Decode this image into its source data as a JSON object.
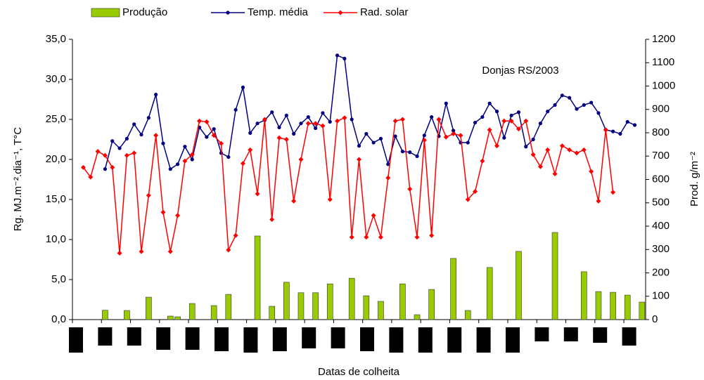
{
  "chart_data": {
    "type": "combo",
    "annotation": "Donjas RS/2003",
    "x_label": "Datas de colheita",
    "y_label": "Rg. MJ.m⁻².dia⁻¹, T°C",
    "y2_label": "Prod. g/m⁻²",
    "categories": [
      null,
      null,
      null,
      null,
      null,
      null,
      null,
      null,
      null,
      null,
      null,
      null,
      null,
      null,
      null,
      null,
      null,
      null,
      null,
      null,
      null,
      null,
      null,
      null,
      null,
      null,
      null,
      null,
      null,
      null,
      null,
      null,
      null,
      null,
      null,
      null,
      null,
      null,
      null,
      null,
      null,
      null,
      null,
      null,
      null,
      null,
      null,
      null,
      null,
      null,
      null,
      null,
      null,
      null,
      null,
      null,
      null,
      null,
      null,
      null,
      null,
      null,
      null,
      null,
      null,
      null,
      null,
      null,
      null,
      null,
      null,
      null,
      null,
      null,
      null,
      null,
      null,
      null,
      null
    ],
    "ylim": [
      0,
      35
    ],
    "yticks": [
      {
        "value": 0,
        "label": "0,0"
      },
      {
        "value": 5,
        "label": "5,0"
      },
      {
        "value": 10,
        "label": "10,0"
      },
      {
        "value": 15,
        "label": "15,0"
      },
      {
        "value": 20,
        "label": "20,0"
      },
      {
        "value": 25,
        "label": "25,0"
      },
      {
        "value": 30,
        "label": "30,0"
      },
      {
        "value": 35,
        "label": "35,0"
      }
    ],
    "y2lim": [
      0,
      1200
    ],
    "y2ticks": [
      0,
      100,
      200,
      300,
      400,
      500,
      600,
      700,
      800,
      900,
      1000,
      1100,
      1200
    ],
    "grid": false,
    "legend": "top",
    "series": [
      {
        "name": "Produção",
        "type": "bar",
        "axis": "y2",
        "color": "#99cc00",
        "values": [
          null,
          null,
          null,
          null,
          40,
          null,
          null,
          39,
          null,
          null,
          96,
          null,
          null,
          15,
          12,
          null,
          69,
          null,
          null,
          60,
          null,
          108,
          null,
          null,
          null,
          358,
          null,
          57,
          null,
          160,
          null,
          115,
          null,
          115,
          null,
          153,
          null,
          null,
          177,
          null,
          102,
          null,
          78,
          null,
          null,
          153,
          null,
          21,
          null,
          129,
          null,
          null,
          262,
          null,
          39,
          null,
          null,
          223,
          null,
          null,
          null,
          292,
          null,
          null,
          null,
          null,
          373,
          null,
          null,
          null,
          205,
          null,
          120,
          null,
          117,
          null,
          105,
          null,
          75
        ]
      },
      {
        "name": "Temp. média",
        "type": "line",
        "marker": "circle",
        "color": "#000080",
        "values": [
          null,
          null,
          null,
          null,
          18.8,
          22.3,
          21.4,
          22.6,
          24.4,
          23.1,
          25.2,
          28.1,
          22.0,
          18.8,
          19.4,
          21.6,
          20.0,
          24.0,
          22.8,
          23.8,
          20.8,
          20.3,
          26.2,
          29.0,
          23.3,
          24.5,
          24.9,
          25.9,
          24.0,
          25.5,
          23.2,
          24.5,
          25.3,
          23.9,
          25.8,
          24.7,
          33.0,
          32.6,
          25.0,
          21.7,
          23.2,
          22.1,
          22.6,
          19.4,
          22.9,
          21.0,
          20.9,
          20.4,
          23.0,
          25.3,
          22.9,
          27.0,
          23.6,
          22.1,
          22.1,
          24.6,
          25.3,
          27.0,
          26.0,
          22.7,
          25.5,
          25.9,
          21.6,
          22.5,
          24.5,
          26.0,
          26.8,
          28.0,
          27.7,
          26.3,
          26.8,
          27.1,
          25.8,
          23.7,
          23.5,
          23.2,
          24.7,
          24.3,
          null
        ]
      },
      {
        "name": "Rad. solar",
        "type": "line",
        "marker": "diamond",
        "color": "#ff0000",
        "values": [
          null,
          19.0,
          17.8,
          21.0,
          20.5,
          19.0,
          8.3,
          20.5,
          20.8,
          8.5,
          15.5,
          23.0,
          13.4,
          8.5,
          13.0,
          19.8,
          20.6,
          24.8,
          24.7,
          23.0,
          22.0,
          8.7,
          10.5,
          19.5,
          21.2,
          15.7,
          25.0,
          12.5,
          22.7,
          22.5,
          14.8,
          20.0,
          24.5,
          24.5,
          24.2,
          15.0,
          24.8,
          25.2,
          10.3,
          20.0,
          10.3,
          13.0,
          10.3,
          17.7,
          24.8,
          25.0,
          16.3,
          10.3,
          22.4,
          10.5,
          25.0,
          22.8,
          23.2,
          23.0,
          15.0,
          16.0,
          19.8,
          23.7,
          21.7,
          24.8,
          24.8,
          23.8,
          24.8,
          20.6,
          19.1,
          21.2,
          18.2,
          21.7,
          21.2,
          20.8,
          21.2,
          18.5,
          14.8,
          23.7,
          15.9,
          null,
          null,
          null,
          null
        ]
      }
    ]
  }
}
